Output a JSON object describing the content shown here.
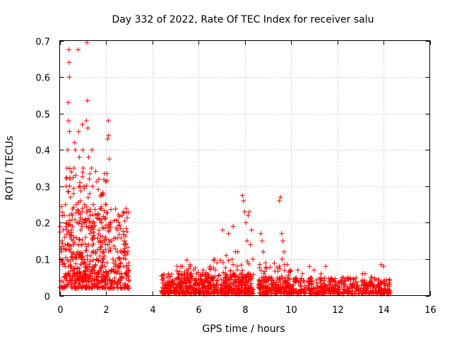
{
  "chart_data": {
    "type": "scatter",
    "title": "Day 332 of 2022, Rate Of TEC Index for receiver salu",
    "xlabel": "GPS time / hours",
    "ylabel": "ROTI / TECUs",
    "xlim": [
      0,
      16
    ],
    "ylim": [
      0,
      0.7
    ],
    "x_ticks": [
      0,
      2,
      4,
      6,
      8,
      10,
      12,
      14,
      16
    ],
    "x_tick_labels": [
      "0",
      "2",
      "4",
      "6",
      "8",
      "10",
      "12",
      "14",
      "16"
    ],
    "y_ticks": [
      0,
      0.1,
      0.2,
      0.3,
      0.4,
      0.5,
      0.6,
      0.7
    ],
    "y_tick_labels": [
      "0",
      "0.1",
      "0.2",
      "0.3",
      "0.4",
      "0.5",
      "0.6",
      "0.7"
    ],
    "grid": true,
    "marker": "+",
    "color": "#ff0000",
    "series": [
      {
        "name": "ROTI",
        "points": [
          [
            0.05,
            0.1
          ],
          [
            0.08,
            0.12
          ],
          [
            0.1,
            0.15
          ],
          [
            0.12,
            0.09
          ],
          [
            0.15,
            0.18
          ],
          [
            0.18,
            0.13
          ],
          [
            0.2,
            0.22
          ],
          [
            0.22,
            0.16
          ],
          [
            0.25,
            0.25
          ],
          [
            0.28,
            0.3
          ],
          [
            0.3,
            0.2
          ],
          [
            0.32,
            0.35
          ],
          [
            0.35,
            0.4
          ],
          [
            0.37,
            0.53
          ],
          [
            0.38,
            0.48
          ],
          [
            0.4,
            0.675
          ],
          [
            0.41,
            0.64
          ],
          [
            0.42,
            0.6
          ],
          [
            0.43,
            0.45
          ],
          [
            0.45,
            0.32
          ],
          [
            0.47,
            0.27
          ],
          [
            0.48,
            0.12
          ],
          [
            0.5,
            0.08
          ],
          [
            0.52,
            0.18
          ],
          [
            0.55,
            0.22
          ],
          [
            0.58,
            0.15
          ],
          [
            0.6,
            0.28
          ],
          [
            0.62,
            0.35
          ],
          [
            0.65,
            0.42
          ],
          [
            0.68,
            0.4
          ],
          [
            0.7,
            0.33
          ],
          [
            0.72,
            0.25
          ],
          [
            0.75,
            0.2
          ],
          [
            0.78,
            0.12
          ],
          [
            0.8,
            0.675
          ],
          [
            0.82,
            0.45
          ],
          [
            0.85,
            0.38
          ],
          [
            0.88,
            0.3
          ],
          [
            0.9,
            0.26
          ],
          [
            0.92,
            0.18
          ],
          [
            0.95,
            0.14
          ],
          [
            0.98,
            0.47
          ],
          [
            1.0,
            0.4
          ],
          [
            1.02,
            0.35
          ],
          [
            1.05,
            0.3
          ],
          [
            1.08,
            0.25
          ],
          [
            1.1,
            0.2
          ],
          [
            1.12,
            0.16
          ],
          [
            1.15,
            0.48
          ],
          [
            1.18,
            0.695
          ],
          [
            1.2,
            0.535
          ],
          [
            1.22,
            0.46
          ],
          [
            1.25,
            0.38
          ],
          [
            1.28,
            0.32
          ],
          [
            1.3,
            0.28
          ],
          [
            1.32,
            0.22
          ],
          [
            1.35,
            0.18
          ],
          [
            1.38,
            0.35
          ],
          [
            1.4,
            0.4
          ],
          [
            1.42,
            0.3
          ],
          [
            1.45,
            0.25
          ],
          [
            1.48,
            0.2
          ],
          [
            1.5,
            0.16
          ],
          [
            1.55,
            0.12
          ],
          [
            1.6,
            0.1
          ],
          [
            1.65,
            0.22
          ],
          [
            1.7,
            0.18
          ],
          [
            1.75,
            0.15
          ],
          [
            1.8,
            0.2
          ],
          [
            1.85,
            0.12
          ],
          [
            1.9,
            0.1
          ],
          [
            1.95,
            0.08
          ],
          [
            2.0,
            0.25
          ],
          [
            2.05,
            0.335
          ],
          [
            2.08,
            0.43
          ],
          [
            2.1,
            0.48
          ],
          [
            2.12,
            0.44
          ],
          [
            2.15,
            0.375
          ],
          [
            2.2,
            0.2
          ],
          [
            2.25,
            0.15
          ],
          [
            2.3,
            0.1
          ],
          [
            2.4,
            0.08
          ],
          [
            2.5,
            0.12
          ],
          [
            2.6,
            0.1
          ],
          [
            2.7,
            0.22
          ],
          [
            2.75,
            0.23
          ],
          [
            2.8,
            0.15
          ],
          [
            2.85,
            0.1
          ],
          [
            2.9,
            0.06
          ],
          [
            2.95,
            0.12
          ],
          [
            3.0,
            0.04
          ],
          [
            3.0,
            0.02
          ],
          [
            2.98,
            0.09
          ],
          [
            2.96,
            0.07
          ],
          [
            7.05,
            0.18
          ],
          [
            7.3,
            0.17
          ],
          [
            7.5,
            0.19
          ],
          [
            7.7,
            0.12
          ],
          [
            7.9,
            0.275
          ],
          [
            7.95,
            0.26
          ],
          [
            8.0,
            0.23
          ],
          [
            8.05,
            0.2
          ],
          [
            8.1,
            0.15
          ],
          [
            8.15,
            0.22
          ],
          [
            8.2,
            0.23
          ],
          [
            8.25,
            0.14
          ],
          [
            8.3,
            0.18
          ],
          [
            8.35,
            0.1
          ],
          [
            8.7,
            0.17
          ],
          [
            8.75,
            0.15
          ],
          [
            8.8,
            0.12
          ],
          [
            8.9,
            0.09
          ],
          [
            9.5,
            0.26
          ],
          [
            9.55,
            0.27
          ],
          [
            9.6,
            0.17
          ],
          [
            9.65,
            0.15
          ],
          [
            9.7,
            0.12
          ],
          [
            9.62,
            0.1
          ],
          [
            6.7,
            0.1
          ],
          [
            6.8,
            0.09
          ],
          [
            7.2,
            0.11
          ],
          [
            7.6,
            0.12
          ],
          [
            5.3,
            0.08
          ],
          [
            5.5,
            0.07
          ],
          [
            5.8,
            0.07
          ],
          [
            6.2,
            0.07
          ],
          [
            6.5,
            0.08
          ],
          [
            10.3,
            0.07
          ],
          [
            10.5,
            0.06
          ],
          [
            10.8,
            0.08
          ],
          [
            11.0,
            0.07
          ],
          [
            11.5,
            0.08
          ],
          [
            11.3,
            0.06
          ],
          [
            13.1,
            0.06
          ],
          [
            13.2,
            0.06
          ],
          [
            13.5,
            0.05
          ],
          [
            13.9,
            0.085
          ],
          [
            14.0,
            0.08
          ]
        ],
        "dense_bands": [
          {
            "x_range": [
              0.0,
              3.0
            ],
            "y_range": [
              0.02,
              0.25
            ],
            "count": 420
          },
          {
            "x_range": [
              0.2,
              2.2
            ],
            "y_range": [
              0.04,
              0.35
            ],
            "count": 200
          },
          {
            "x_range": [
              4.4,
              8.4
            ],
            "y_range": [
              0.005,
              0.06
            ],
            "count": 520
          },
          {
            "x_range": [
              5.0,
              8.4
            ],
            "y_range": [
              0.02,
              0.1
            ],
            "count": 160
          },
          {
            "x_range": [
              8.6,
              14.3
            ],
            "y_range": [
              0.005,
              0.05
            ],
            "count": 620
          },
          {
            "x_range": [
              8.6,
              10.0
            ],
            "y_range": [
              0.02,
              0.09
            ],
            "count": 60
          }
        ]
      }
    ]
  }
}
